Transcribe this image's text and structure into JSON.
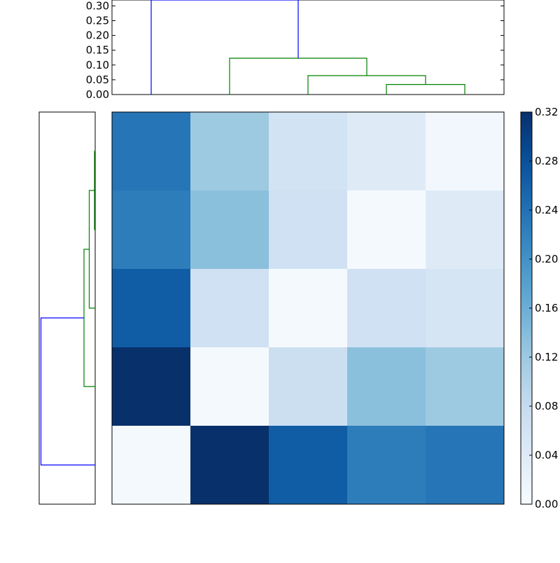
{
  "chart_data": [
    {
      "type": "dendrogram",
      "panel": "top",
      "ylim": [
        0,
        0.32
      ],
      "yticks": [
        "0.00",
        "0.05",
        "0.10",
        "0.15",
        "0.20",
        "0.25",
        "0.30"
      ],
      "ytick_values": [
        0,
        0.05,
        0.1,
        0.15,
        0.2,
        0.25,
        0.3
      ],
      "leaf_order": [
        0,
        1,
        2,
        3,
        4
      ],
      "links": [
        {
          "left": 3.5,
          "right": 4.5,
          "left_height": 0,
          "right_height": 0,
          "height": 0.034,
          "color": "#008000"
        },
        {
          "left": 2.5,
          "right": 4.0,
          "left_height": 0,
          "right_height": 0.034,
          "height": 0.064,
          "color": "#008000"
        },
        {
          "left": 1.5,
          "right": 3.25,
          "left_height": 0,
          "right_height": 0.064,
          "height": 0.123,
          "color": "#008000"
        },
        {
          "left": 0.5,
          "right": 2.375,
          "left_height": 0,
          "right_height": 0.123,
          "height": 0.32,
          "color": "#0000ff"
        }
      ]
    },
    {
      "type": "dendrogram",
      "panel": "left",
      "xlim": [
        0.32,
        0
      ],
      "links": [
        {
          "top": 0.5,
          "bottom": 1.5,
          "top_height": 0,
          "bottom_height": 0,
          "height": 0.004,
          "color": "#008000"
        },
        {
          "top": 1.0,
          "bottom": 2.5,
          "top_height": 0.004,
          "bottom_height": 0,
          "height": 0.034,
          "color": "#008000"
        },
        {
          "top": 1.75,
          "bottom": 3.5,
          "top_height": 0.034,
          "bottom_height": 0,
          "height": 0.064,
          "color": "#008000"
        },
        {
          "top": 2.625,
          "bottom": 4.5,
          "top_height": 0.064,
          "bottom_height": 0,
          "height": 0.31,
          "color": "#0000ff"
        }
      ]
    },
    {
      "type": "heatmap",
      "colormap": "Blues",
      "vmin": 0,
      "vmax": 0.32,
      "rows": 5,
      "cols": 5,
      "values": [
        [
          0.235,
          0.12,
          0.06,
          0.04,
          0.01
        ],
        [
          0.225,
          0.135,
          0.065,
          0.005,
          0.04
        ],
        [
          0.265,
          0.065,
          0.005,
          0.065,
          0.055
        ],
        [
          0.32,
          0.005,
          0.07,
          0.135,
          0.12
        ],
        [
          0.005,
          0.32,
          0.265,
          0.225,
          0.235
        ]
      ]
    },
    {
      "type": "colorbar",
      "colormap": "Blues",
      "range": [
        0,
        0.32
      ],
      "ticks": [
        "0.00",
        "0.04",
        "0.08",
        "0.12",
        "0.16",
        "0.20",
        "0.24",
        "0.28",
        "0.32"
      ],
      "tick_values": [
        0,
        0.04,
        0.08,
        0.12,
        0.16,
        0.2,
        0.24,
        0.28,
        0.32
      ]
    }
  ]
}
